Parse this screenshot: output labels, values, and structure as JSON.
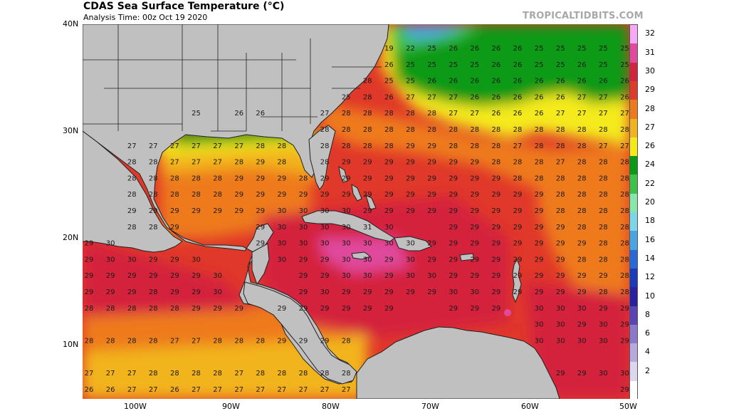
{
  "title": "CDAS Sea Surface Temperature (°C)",
  "subtitle": "Analysis Time: 00z Oct 19 2020",
  "watermark": "TROPICALTIDBITS.COM",
  "lat_labels": [
    "40N",
    "30N",
    "20N",
    "10N"
  ],
  "lon_labels": [
    "100W",
    "90W",
    "80W",
    "70W",
    "60W",
    "50W"
  ],
  "colorbar": {
    "labels": [
      "32",
      "31",
      "30",
      "29",
      "28",
      "27",
      "26",
      "24",
      "22",
      "20",
      "18",
      "16",
      "14",
      "12",
      "10",
      "8",
      "6",
      "4",
      "2"
    ],
    "colors": [
      "#f7a8f7",
      "#e04a9c",
      "#d4233c",
      "#e03a2a",
      "#ee7a1e",
      "#f2b41e",
      "#f4ea1a",
      "#0c9a16",
      "#3ec24a",
      "#86e7a8",
      "#7cd6e8",
      "#4aa4e0",
      "#2a6ad6",
      "#1a3aba",
      "#2a20a0",
      "#5a44b4",
      "#8a78c8",
      "#b7a8de",
      "#ddd6ef",
      "#ffffff"
    ]
  },
  "colors": {
    "land": "#c0c0c0",
    "border": "#202020"
  },
  "sst_rows": [
    [
      "",
      "",
      "",
      "",
      "",
      "",
      "",
      "",
      "",
      "",
      "",
      "",
      "",
      "",
      "19",
      "22",
      "25",
      "26",
      "26",
      "26",
      "26",
      "25",
      "25",
      "25",
      "25",
      "25"
    ],
    [
      "",
      "",
      "",
      "",
      "",
      "",
      "",
      "",
      "",
      "",
      "",
      "",
      "",
      "",
      "26",
      "25",
      "25",
      "25",
      "25",
      "26",
      "26",
      "25",
      "25",
      "26",
      "25",
      "25"
    ],
    [
      "",
      "",
      "",
      "",
      "",
      "",
      "",
      "",
      "",
      "",
      "",
      "",
      "",
      "28",
      "25",
      "25",
      "26",
      "26",
      "26",
      "26",
      "26",
      "26",
      "26",
      "26",
      "26",
      "26"
    ],
    [
      "",
      "",
      "",
      "",
      "",
      "",
      "",
      "",
      "",
      "",
      "",
      "",
      "25",
      "28",
      "26",
      "27",
      "27",
      "27",
      "26",
      "26",
      "26",
      "26",
      "26",
      "27",
      "27",
      "26"
    ],
    [
      "",
      "",
      "",
      "",
      "",
      "25",
      "",
      "26",
      "26",
      "",
      "",
      "27",
      "28",
      "28",
      "28",
      "28",
      "28",
      "27",
      "27",
      "26",
      "26",
      "26",
      "27",
      "27",
      "27",
      "27"
    ],
    [
      "",
      "",
      "",
      "",
      "",
      "",
      "",
      "",
      "",
      "",
      "",
      "28",
      "28",
      "28",
      "28",
      "28",
      "28",
      "28",
      "28",
      "28",
      "28",
      "28",
      "28",
      "28",
      "28",
      "28"
    ],
    [
      "",
      "",
      "27",
      "27",
      "27",
      "27",
      "27",
      "27",
      "28",
      "28",
      "",
      "28",
      "28",
      "28",
      "28",
      "29",
      "29",
      "28",
      "28",
      "28",
      "27",
      "28",
      "28",
      "28",
      "27",
      "27"
    ],
    [
      "",
      "",
      "28",
      "28",
      "27",
      "27",
      "27",
      "28",
      "29",
      "28",
      "",
      "28",
      "29",
      "29",
      "29",
      "29",
      "29",
      "29",
      "29",
      "28",
      "28",
      "28",
      "27",
      "28",
      "28",
      "28"
    ],
    [
      "",
      "",
      "28",
      "28",
      "28",
      "28",
      "28",
      "29",
      "29",
      "29",
      "28",
      "29",
      "29",
      "29",
      "29",
      "29",
      "29",
      "29",
      "29",
      "29",
      "28",
      "28",
      "28",
      "28",
      "28",
      "28"
    ],
    [
      "",
      "",
      "28",
      "28",
      "28",
      "28",
      "28",
      "29",
      "29",
      "29",
      "29",
      "29",
      "29",
      "29",
      "29",
      "29",
      "29",
      "29",
      "29",
      "29",
      "29",
      "29",
      "28",
      "28",
      "28",
      "28"
    ],
    [
      "",
      "",
      "29",
      "29",
      "29",
      "29",
      "29",
      "29",
      "29",
      "30",
      "30",
      "30",
      "30",
      "29",
      "29",
      "29",
      "29",
      "29",
      "29",
      "29",
      "29",
      "29",
      "28",
      "28",
      "28",
      "28"
    ],
    [
      "",
      "",
      "28",
      "28",
      "29",
      "",
      "",
      "",
      "29",
      "30",
      "30",
      "30",
      "30",
      "31",
      "30",
      "",
      "",
      "29",
      "29",
      "29",
      "29",
      "29",
      "29",
      "28",
      "28",
      "28"
    ],
    [
      "29",
      "30",
      "",
      "",
      "",
      "",
      "",
      "",
      "29",
      "30",
      "30",
      "30",
      "30",
      "30",
      "30",
      "30",
      "29",
      "29",
      "29",
      "29",
      "29",
      "29",
      "29",
      "29",
      "28",
      "28"
    ],
    [
      "29",
      "30",
      "30",
      "29",
      "29",
      "30",
      "",
      "",
      "",
      "30",
      "29",
      "29",
      "30",
      "30",
      "29",
      "30",
      "29",
      "29",
      "29",
      "29",
      "29",
      "29",
      "29",
      "28",
      "28",
      "28"
    ],
    [
      "29",
      "29",
      "29",
      "29",
      "29",
      "29",
      "30",
      "",
      "",
      "",
      "29",
      "29",
      "30",
      "30",
      "29",
      "30",
      "30",
      "29",
      "29",
      "29",
      "29",
      "29",
      "29",
      "29",
      "29",
      "28"
    ],
    [
      "29",
      "29",
      "29",
      "28",
      "29",
      "29",
      "30",
      "",
      "",
      "",
      "29",
      "30",
      "29",
      "29",
      "29",
      "29",
      "29",
      "30",
      "30",
      "29",
      "29",
      "29",
      "29",
      "29",
      "28",
      "28"
    ],
    [
      "28",
      "28",
      "28",
      "28",
      "28",
      "29",
      "29",
      "29",
      "",
      "29",
      "29",
      "29",
      "29",
      "29",
      "29",
      "",
      "",
      "29",
      "29",
      "29",
      "",
      "30",
      "30",
      "30",
      "29",
      "29"
    ],
    [
      "",
      "",
      "",
      "",
      "",
      "",
      "",
      "",
      "",
      "",
      "",
      "",
      "",
      "",
      "",
      "",
      "",
      "",
      "",
      "",
      "",
      "30",
      "30",
      "29",
      "30",
      "29"
    ],
    [
      "28",
      "28",
      "28",
      "28",
      "27",
      "27",
      "28",
      "28",
      "28",
      "29",
      "29",
      "29",
      "28",
      "",
      "",
      "",
      "",
      "",
      "",
      "",
      "",
      "30",
      "30",
      "30",
      "30",
      "29"
    ],
    [
      "",
      "",
      "",
      "",
      "",
      "",
      "",
      "",
      "",
      "",
      "",
      "",
      "",
      "",
      "",
      "",
      "",
      "",
      "",
      "",
      "",
      "",
      "",
      "",
      "",
      ""
    ],
    [
      "27",
      "27",
      "27",
      "28",
      "28",
      "28",
      "28",
      "27",
      "28",
      "28",
      "28",
      "28",
      "28",
      "",
      "",
      "",
      "",
      "",
      "",
      "",
      "",
      "",
      "29",
      "29",
      "30",
      "30"
    ],
    [
      "26",
      "26",
      "27",
      "27",
      "26",
      "27",
      "27",
      "27",
      "27",
      "27",
      "27",
      "27",
      "27",
      "",
      "",
      "",
      "",
      "",
      "",
      "",
      "",
      "",
      "",
      "",
      "",
      "29"
    ]
  ]
}
